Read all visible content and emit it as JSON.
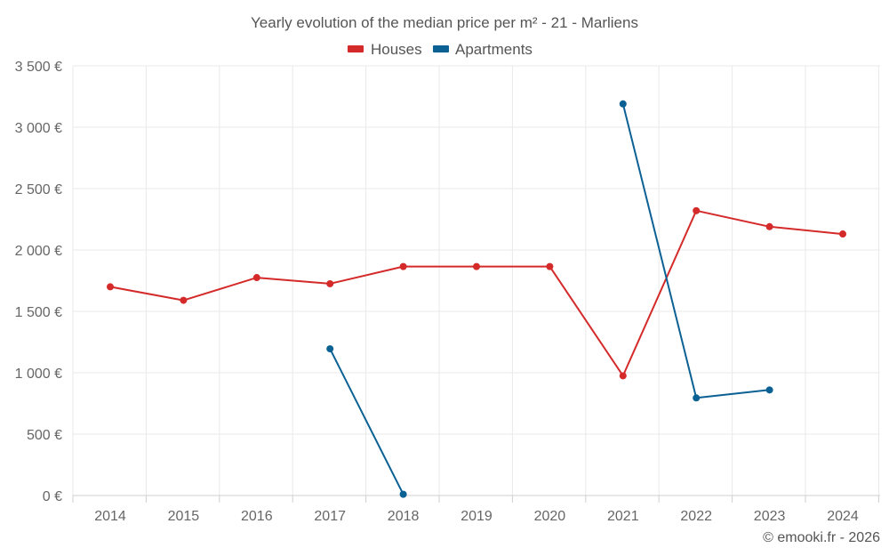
{
  "chart_data": {
    "type": "line",
    "title": "Yearly evolution of the median price per m² - 21 - Marliens",
    "categories": [
      "2014",
      "2015",
      "2016",
      "2017",
      "2018",
      "2019",
      "2020",
      "2021",
      "2022",
      "2023",
      "2024"
    ],
    "ylim": [
      0,
      3500
    ],
    "yticks": [
      0,
      500,
      1000,
      1500,
      2000,
      2500,
      3000,
      3500
    ],
    "ytick_labels": [
      "0 €",
      "500 €",
      "1 000 €",
      "1 500 €",
      "2 000 €",
      "2 500 €",
      "3 000 €",
      "3 500 €"
    ],
    "grid": true,
    "legend_position": "top-center",
    "series": [
      {
        "name": "Houses",
        "color": "#d42a2a",
        "values": [
          1700,
          1590,
          1775,
          1725,
          1865,
          1865,
          1865,
          975,
          2320,
          2190,
          2130
        ]
      },
      {
        "name": "Apartments",
        "color": "#0b6194",
        "values": [
          null,
          null,
          null,
          1195,
          10,
          null,
          null,
          3190,
          795,
          860,
          null
        ]
      }
    ],
    "credit": "© emooki.fr - 2026"
  }
}
